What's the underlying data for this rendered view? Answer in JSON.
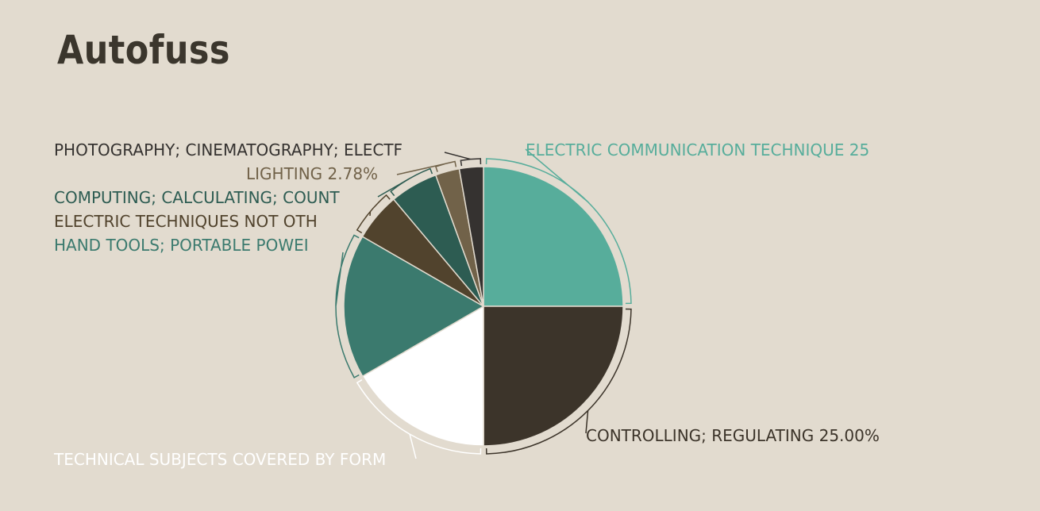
{
  "title": "Autofuss",
  "chart_data": {
    "type": "pie",
    "title": "Autofuss",
    "slices": [
      {
        "label": "ELECTRIC COMMUNICATION TECHNIQUE",
        "value": 25.0,
        "display": "ELECTRIC COMMUNICATION TECHNIQUE 25",
        "color": "#57ad9b",
        "label_color": "#57ad9b"
      },
      {
        "label": "CONTROLLING; REGULATING",
        "value": 25.0,
        "display": "CONTROLLING; REGULATING 25.00%",
        "color": "#3c342a",
        "label_color": "#3c342a"
      },
      {
        "label": "TECHNICAL SUBJECTS COVERED BY FORMER",
        "value": 16.67,
        "display": "TECHNICAL SUBJECTS COVERED BY FORM",
        "color": "#ffffff",
        "label_color": "#ffffff"
      },
      {
        "label": "HAND TOOLS; PORTABLE POWER-DRIVEN TOOLS",
        "value": 16.67,
        "display": "HAND TOOLS; PORTABLE POWEI",
        "color": "#3b7a6e",
        "label_color": "#3b7a6e"
      },
      {
        "label": "ELECTRIC TECHNIQUES NOT OTHERWISE PROVIDED FOR",
        "value": 5.56,
        "display": "ELECTRIC TECHNIQUES NOT OTH",
        "color": "#51432d",
        "label_color": "#51432d"
      },
      {
        "label": "COMPUTING; CALCULATING; COUNTING",
        "value": 5.56,
        "display": "COMPUTING; CALCULATING; COUNT",
        "color": "#2d5c52",
        "label_color": "#2d5c52"
      },
      {
        "label": "LIGHTING",
        "value": 2.78,
        "display": "LIGHTING 2.78%",
        "color": "#716249",
        "label_color": "#716249"
      },
      {
        "label": "PHOTOGRAPHY; CINEMATOGRAPHY; ELECTROGRAPHY",
        "value": 2.78,
        "display": "PHOTOGRAPHY; CINEMATOGRAPHY; ELECTF",
        "color": "#353230",
        "label_color": "#353230"
      }
    ]
  }
}
